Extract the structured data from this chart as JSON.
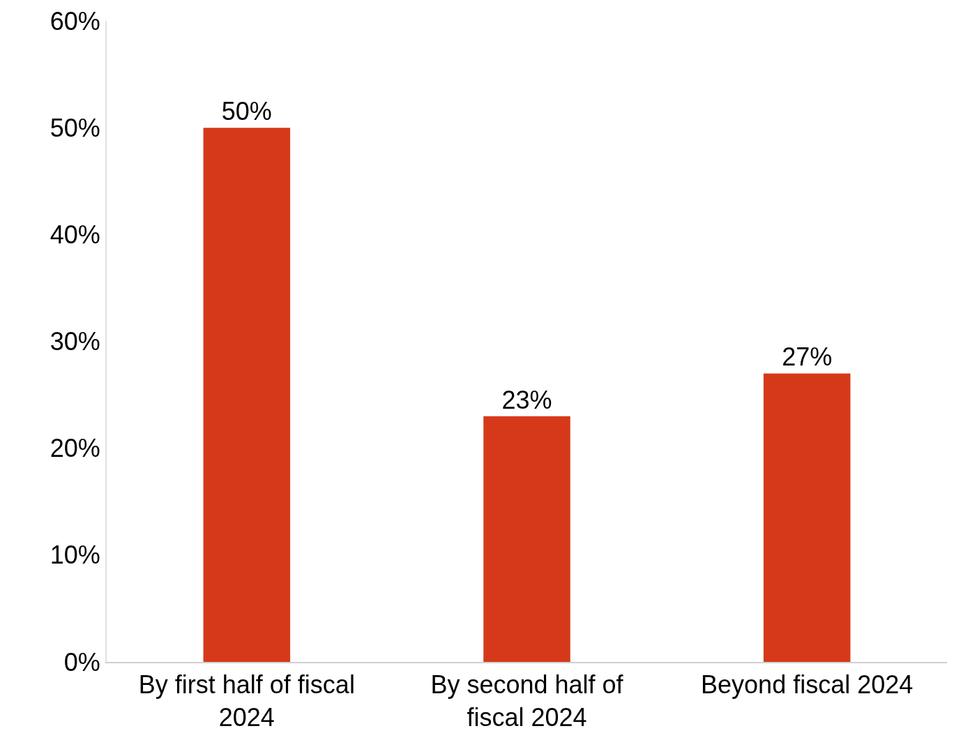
{
  "chart_data": {
    "type": "bar",
    "categories": [
      "By first half of fiscal 2024",
      "By second half of fiscal 2024",
      "Beyond fiscal 2024"
    ],
    "values": [
      50,
      23,
      27
    ],
    "value_labels": [
      "50%",
      "23%",
      "27%"
    ],
    "color": "#d5391a",
    "ylim": [
      0,
      60
    ],
    "yticks": [
      {
        "value": 0,
        "label": "0%"
      },
      {
        "value": 10,
        "label": "10%"
      },
      {
        "value": 20,
        "label": "20%"
      },
      {
        "value": 30,
        "label": "30%"
      },
      {
        "value": 40,
        "label": "40%"
      },
      {
        "value": 50,
        "label": "50%"
      },
      {
        "value": 60,
        "label": "60%"
      }
    ],
    "data_labels": false
  }
}
